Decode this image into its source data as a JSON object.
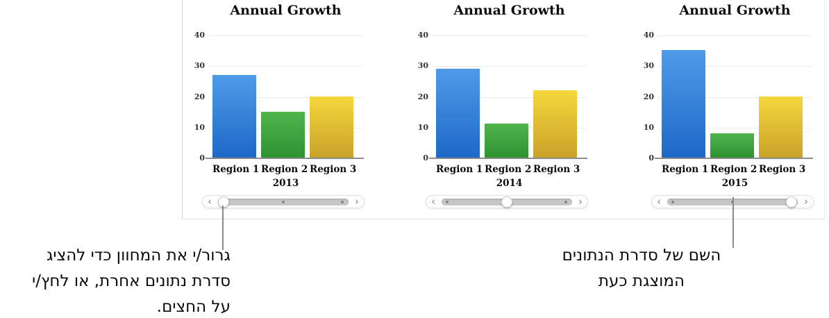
{
  "axis": {
    "max": 40,
    "ticks": [
      40,
      30,
      20,
      10,
      0
    ]
  },
  "bar_colors": [
    {
      "name": "blue",
      "top": "#4f9be8",
      "bottom": "#1e68c8"
    },
    {
      "name": "green",
      "top": "#50b54d",
      "bottom": "#2e9232"
    },
    {
      "name": "yellow",
      "top": "#f5d73c",
      "bottom": "#c9a22a"
    }
  ],
  "slider_ui": {
    "prev_glyph": "‹",
    "next_glyph": "›",
    "positions_pct": [
      4,
      50,
      95
    ]
  },
  "chart_data": [
    {
      "type": "bar",
      "title": "Annual Growth",
      "year": "2013",
      "categories": [
        "Region 1",
        "Region 2",
        "Region 3"
      ],
      "values": [
        27,
        15,
        20
      ],
      "ylim": [
        0,
        40
      ],
      "yticks": [
        0,
        10,
        20,
        30,
        40
      ],
      "grid": true,
      "slider": {
        "thumb_index": 0,
        "dot_indices": [
          1,
          2
        ]
      }
    },
    {
      "type": "bar",
      "title": "Annual Growth",
      "year": "2014",
      "categories": [
        "Region 1",
        "Region 2",
        "Region 3"
      ],
      "values": [
        29,
        11,
        22
      ],
      "ylim": [
        0,
        40
      ],
      "yticks": [
        0,
        10,
        20,
        30,
        40
      ],
      "grid": true,
      "slider": {
        "thumb_index": 1,
        "dot_indices": [
          0,
          2
        ]
      }
    },
    {
      "type": "bar",
      "title": "Annual Growth",
      "year": "2015",
      "categories": [
        "Region 1",
        "Region 2",
        "Region 3"
      ],
      "values": [
        35,
        8,
        20
      ],
      "ylim": [
        0,
        40
      ],
      "yticks": [
        0,
        10,
        20,
        30,
        40
      ],
      "grid": true,
      "slider": {
        "thumb_index": 2,
        "dot_indices": [
          0,
          1
        ]
      }
    }
  ],
  "callouts": {
    "drag_lines": {
      "0": "גרור/י את המחוון כדי להציג",
      "1": "סדרת נתונים אחרת, או לחץ/י",
      "2": "על החצים."
    },
    "series_lines": {
      "0": "השם של סדרת הנתונים",
      "1": "המוצגת כעת"
    }
  }
}
